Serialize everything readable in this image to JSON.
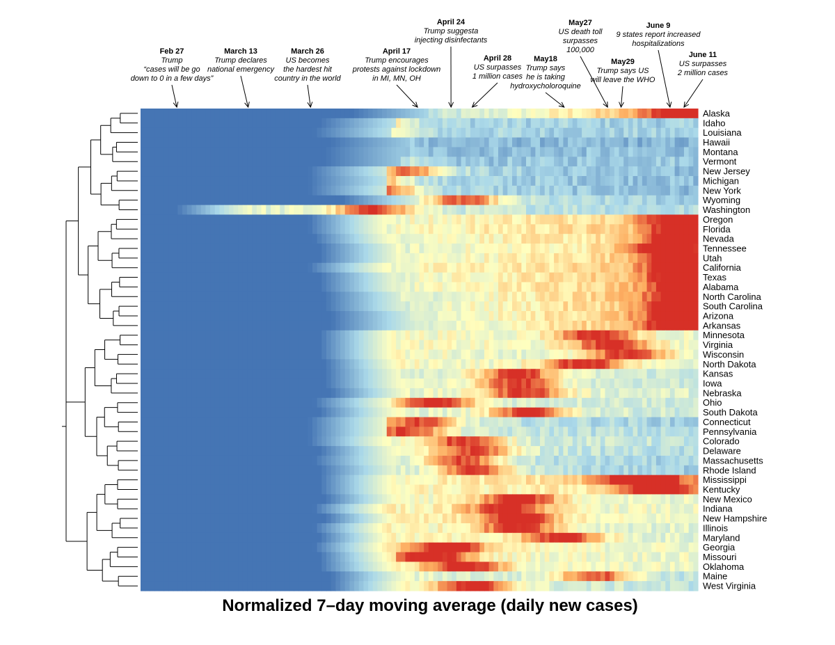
{
  "chart_data": {
    "type": "heatmap",
    "title": "Normalized 7–day moving average (daily new cases)",
    "color_scale": {
      "low": "#4575b4",
      "mid_low": "#abd9e9",
      "mid": "#ffffbf",
      "mid_high": "#fdae61",
      "high": "#d73027"
    },
    "num_days": 120,
    "rows": [
      {
        "state": "Alaska",
        "onset": 0.44,
        "peak": 0.99,
        "base": 0.3,
        "late": 0.9,
        "group": 1
      },
      {
        "state": "Idaho",
        "onset": 0.38,
        "peak": 0.41,
        "base": 0.35,
        "late": 0.3,
        "group": 1
      },
      {
        "state": "Louisiana",
        "onset": 0.37,
        "peak": 0.4,
        "base": 0.35,
        "late": 0.3,
        "group": 1
      },
      {
        "state": "Hawaii",
        "onset": 0.4,
        "peak": 0.38,
        "base": 0.25,
        "late": 0.2,
        "group": 1
      },
      {
        "state": "Montana",
        "onset": 0.39,
        "peak": 0.36,
        "base": 0.25,
        "late": 0.25,
        "group": 1
      },
      {
        "state": "Vermont",
        "onset": 0.39,
        "peak": 0.4,
        "base": 0.25,
        "late": 0.3,
        "group": 1
      },
      {
        "state": "New Jersey",
        "onset": 0.36,
        "peak": 0.48,
        "base": 0.4,
        "late": 0.22,
        "group": 1
      },
      {
        "state": "Michigan",
        "onset": 0.36,
        "peak": 0.41,
        "base": 0.35,
        "late": 0.25,
        "group": 1
      },
      {
        "state": "New York",
        "onset": 0.36,
        "peak": 0.43,
        "base": 0.4,
        "late": 0.22,
        "group": 1
      },
      {
        "state": "Wyoming",
        "onset": 0.42,
        "peak": 0.58,
        "base": 0.45,
        "late": 0.3,
        "group": 1
      },
      {
        "state": "Washington",
        "onset": 0.12,
        "peak": 0.42,
        "base": 0.55,
        "late": 0.35,
        "group": 1
      },
      {
        "state": "Oregon",
        "onset": 0.36,
        "peak": 0.98,
        "base": 0.55,
        "late": 0.8,
        "group": 2
      },
      {
        "state": "Florida",
        "onset": 0.36,
        "peak": 0.99,
        "base": 0.55,
        "late": 0.8,
        "group": 2
      },
      {
        "state": "Nevada",
        "onset": 0.37,
        "peak": 0.98,
        "base": 0.55,
        "late": 0.75,
        "group": 2
      },
      {
        "state": "Tennessee",
        "onset": 0.38,
        "peak": 0.95,
        "base": 0.5,
        "late": 0.75,
        "group": 2
      },
      {
        "state": "Utah",
        "onset": 0.38,
        "peak": 0.97,
        "base": 0.5,
        "late": 0.8,
        "group": 2
      },
      {
        "state": "California",
        "onset": 0.36,
        "peak": 0.98,
        "base": 0.55,
        "late": 0.8,
        "group": 2
      },
      {
        "state": "Texas",
        "onset": 0.38,
        "peak": 0.99,
        "base": 0.5,
        "late": 0.85,
        "group": 2
      },
      {
        "state": "Alabama",
        "onset": 0.38,
        "peak": 0.99,
        "base": 0.5,
        "late": 0.85,
        "group": 2
      },
      {
        "state": "North Carolina",
        "onset": 0.39,
        "peak": 0.99,
        "base": 0.45,
        "late": 0.85,
        "group": 2
      },
      {
        "state": "South Carolina",
        "onset": 0.39,
        "peak": 0.99,
        "base": 0.45,
        "late": 0.85,
        "group": 2
      },
      {
        "state": "Arizona",
        "onset": 0.4,
        "peak": 0.99,
        "base": 0.4,
        "late": 0.9,
        "group": 2
      },
      {
        "state": "Arkansas",
        "onset": 0.4,
        "peak": 0.99,
        "base": 0.4,
        "late": 0.9,
        "group": 2
      },
      {
        "state": "Minnesota",
        "onset": 0.38,
        "peak": 0.82,
        "base": 0.6,
        "late": 0.55,
        "group": 3
      },
      {
        "state": "Virginia",
        "onset": 0.38,
        "peak": 0.85,
        "base": 0.6,
        "late": 0.55,
        "group": 3
      },
      {
        "state": "Wisconsin",
        "onset": 0.38,
        "peak": 0.88,
        "base": 0.6,
        "late": 0.5,
        "group": 3
      },
      {
        "state": "North Dakota",
        "onset": 0.39,
        "peak": 0.8,
        "base": 0.6,
        "late": 0.55,
        "group": 3
      },
      {
        "state": "Kansas",
        "onset": 0.39,
        "peak": 0.68,
        "base": 0.55,
        "late": 0.45,
        "group": 3
      },
      {
        "state": "Iowa",
        "onset": 0.39,
        "peak": 0.68,
        "base": 0.55,
        "late": 0.45,
        "group": 3
      },
      {
        "state": "Nebraska",
        "onset": 0.4,
        "peak": 0.69,
        "base": 0.55,
        "late": 0.5,
        "group": 3
      },
      {
        "state": "Ohio",
        "onset": 0.37,
        "peak": 0.53,
        "base": 0.55,
        "late": 0.45,
        "group": 4
      },
      {
        "state": "South Dakota",
        "onset": 0.38,
        "peak": 0.7,
        "base": 0.55,
        "late": 0.45,
        "group": 4
      },
      {
        "state": "Connecticut",
        "onset": 0.36,
        "peak": 0.5,
        "base": 0.5,
        "late": 0.3,
        "group": 4
      },
      {
        "state": "Pennsylvania",
        "onset": 0.36,
        "peak": 0.48,
        "base": 0.5,
        "late": 0.35,
        "group": 4
      },
      {
        "state": "Colorado",
        "onset": 0.36,
        "peak": 0.58,
        "base": 0.55,
        "late": 0.4,
        "group": 4
      },
      {
        "state": "Delaware",
        "onset": 0.38,
        "peak": 0.6,
        "base": 0.55,
        "late": 0.35,
        "group": 4
      },
      {
        "state": "Massachusetts",
        "onset": 0.37,
        "peak": 0.58,
        "base": 0.5,
        "late": 0.3,
        "group": 4
      },
      {
        "state": "Rhode Island",
        "onset": 0.38,
        "peak": 0.6,
        "base": 0.5,
        "late": 0.3,
        "group": 4
      },
      {
        "state": "Mississippi",
        "onset": 0.38,
        "peak": 0.9,
        "base": 0.6,
        "late": 0.8,
        "group": 5
      },
      {
        "state": "Kentucky",
        "onset": 0.38,
        "peak": 0.93,
        "base": 0.6,
        "late": 0.7,
        "group": 5
      },
      {
        "state": "New Mexico",
        "onset": 0.39,
        "peak": 0.68,
        "base": 0.6,
        "late": 0.55,
        "group": 5
      },
      {
        "state": "Indiana",
        "onset": 0.37,
        "peak": 0.66,
        "base": 0.65,
        "late": 0.55,
        "group": 5
      },
      {
        "state": "New Hampshire",
        "onset": 0.39,
        "peak": 0.68,
        "base": 0.65,
        "late": 0.55,
        "group": 5
      },
      {
        "state": "Illinois",
        "onset": 0.37,
        "peak": 0.68,
        "base": 0.65,
        "late": 0.5,
        "group": 5
      },
      {
        "state": "Maryland",
        "onset": 0.38,
        "peak": 0.76,
        "base": 0.65,
        "late": 0.5,
        "group": 5
      },
      {
        "state": "Georgia",
        "onset": 0.37,
        "peak": 0.55,
        "base": 0.65,
        "late": 0.55,
        "group": 6
      },
      {
        "state": "Missouri",
        "onset": 0.38,
        "peak": 0.52,
        "base": 0.65,
        "late": 0.55,
        "group": 6
      },
      {
        "state": "Oklahoma",
        "onset": 0.38,
        "peak": 0.58,
        "base": 0.6,
        "late": 0.55,
        "group": 6
      },
      {
        "state": "Maine",
        "onset": 0.4,
        "peak": 0.82,
        "base": 0.55,
        "late": 0.4,
        "group": 6
      },
      {
        "state": "West Virginia",
        "onset": 0.4,
        "peak": 0.6,
        "base": 0.6,
        "late": 0.4,
        "group": 6
      }
    ],
    "annotations": [
      {
        "date": "Feb 27",
        "lines": [
          "Trump",
          "“cases will be go",
          "down to 0 in a few days”"
        ],
        "day": 0.065
      },
      {
        "date": "March 13",
        "lines": [
          "Trump declares",
          "national emergency"
        ],
        "day": 0.193
      },
      {
        "date": "March 26",
        "lines": [
          "US becomes",
          "the hardest hit",
          "country in the world"
        ],
        "day": 0.305
      },
      {
        "date": "April 17",
        "lines": [
          "Trump encourages",
          "protests against lockdown",
          "in MI, MN, OH"
        ],
        "day": 0.497
      },
      {
        "date": "April 24",
        "lines": [
          "Trump suggesta",
          "injecting disinfectants"
        ],
        "day": 0.557
      },
      {
        "date": "April 28",
        "lines": [
          "US surpasses",
          "1 million cases"
        ],
        "day": 0.595
      },
      {
        "date": "May18",
        "lines": [
          "Trump says",
          "he is taking",
          "hydroxycholoroquine"
        ],
        "day": 0.76
      },
      {
        "date": "May27",
        "lines": [
          "US death toll",
          "surpasses",
          "100,000"
        ],
        "day": 0.838
      },
      {
        "date": "May29",
        "lines": [
          "Trump says US",
          "will leave the WHO"
        ],
        "day": 0.862
      },
      {
        "date": "June 9",
        "lines": [
          "9 states report increased",
          "hospitalizations"
        ],
        "day": 0.95
      },
      {
        "date": "June 11",
        "lines": [
          "US surpasses",
          "2 million cases"
        ],
        "day": 0.975
      }
    ]
  }
}
